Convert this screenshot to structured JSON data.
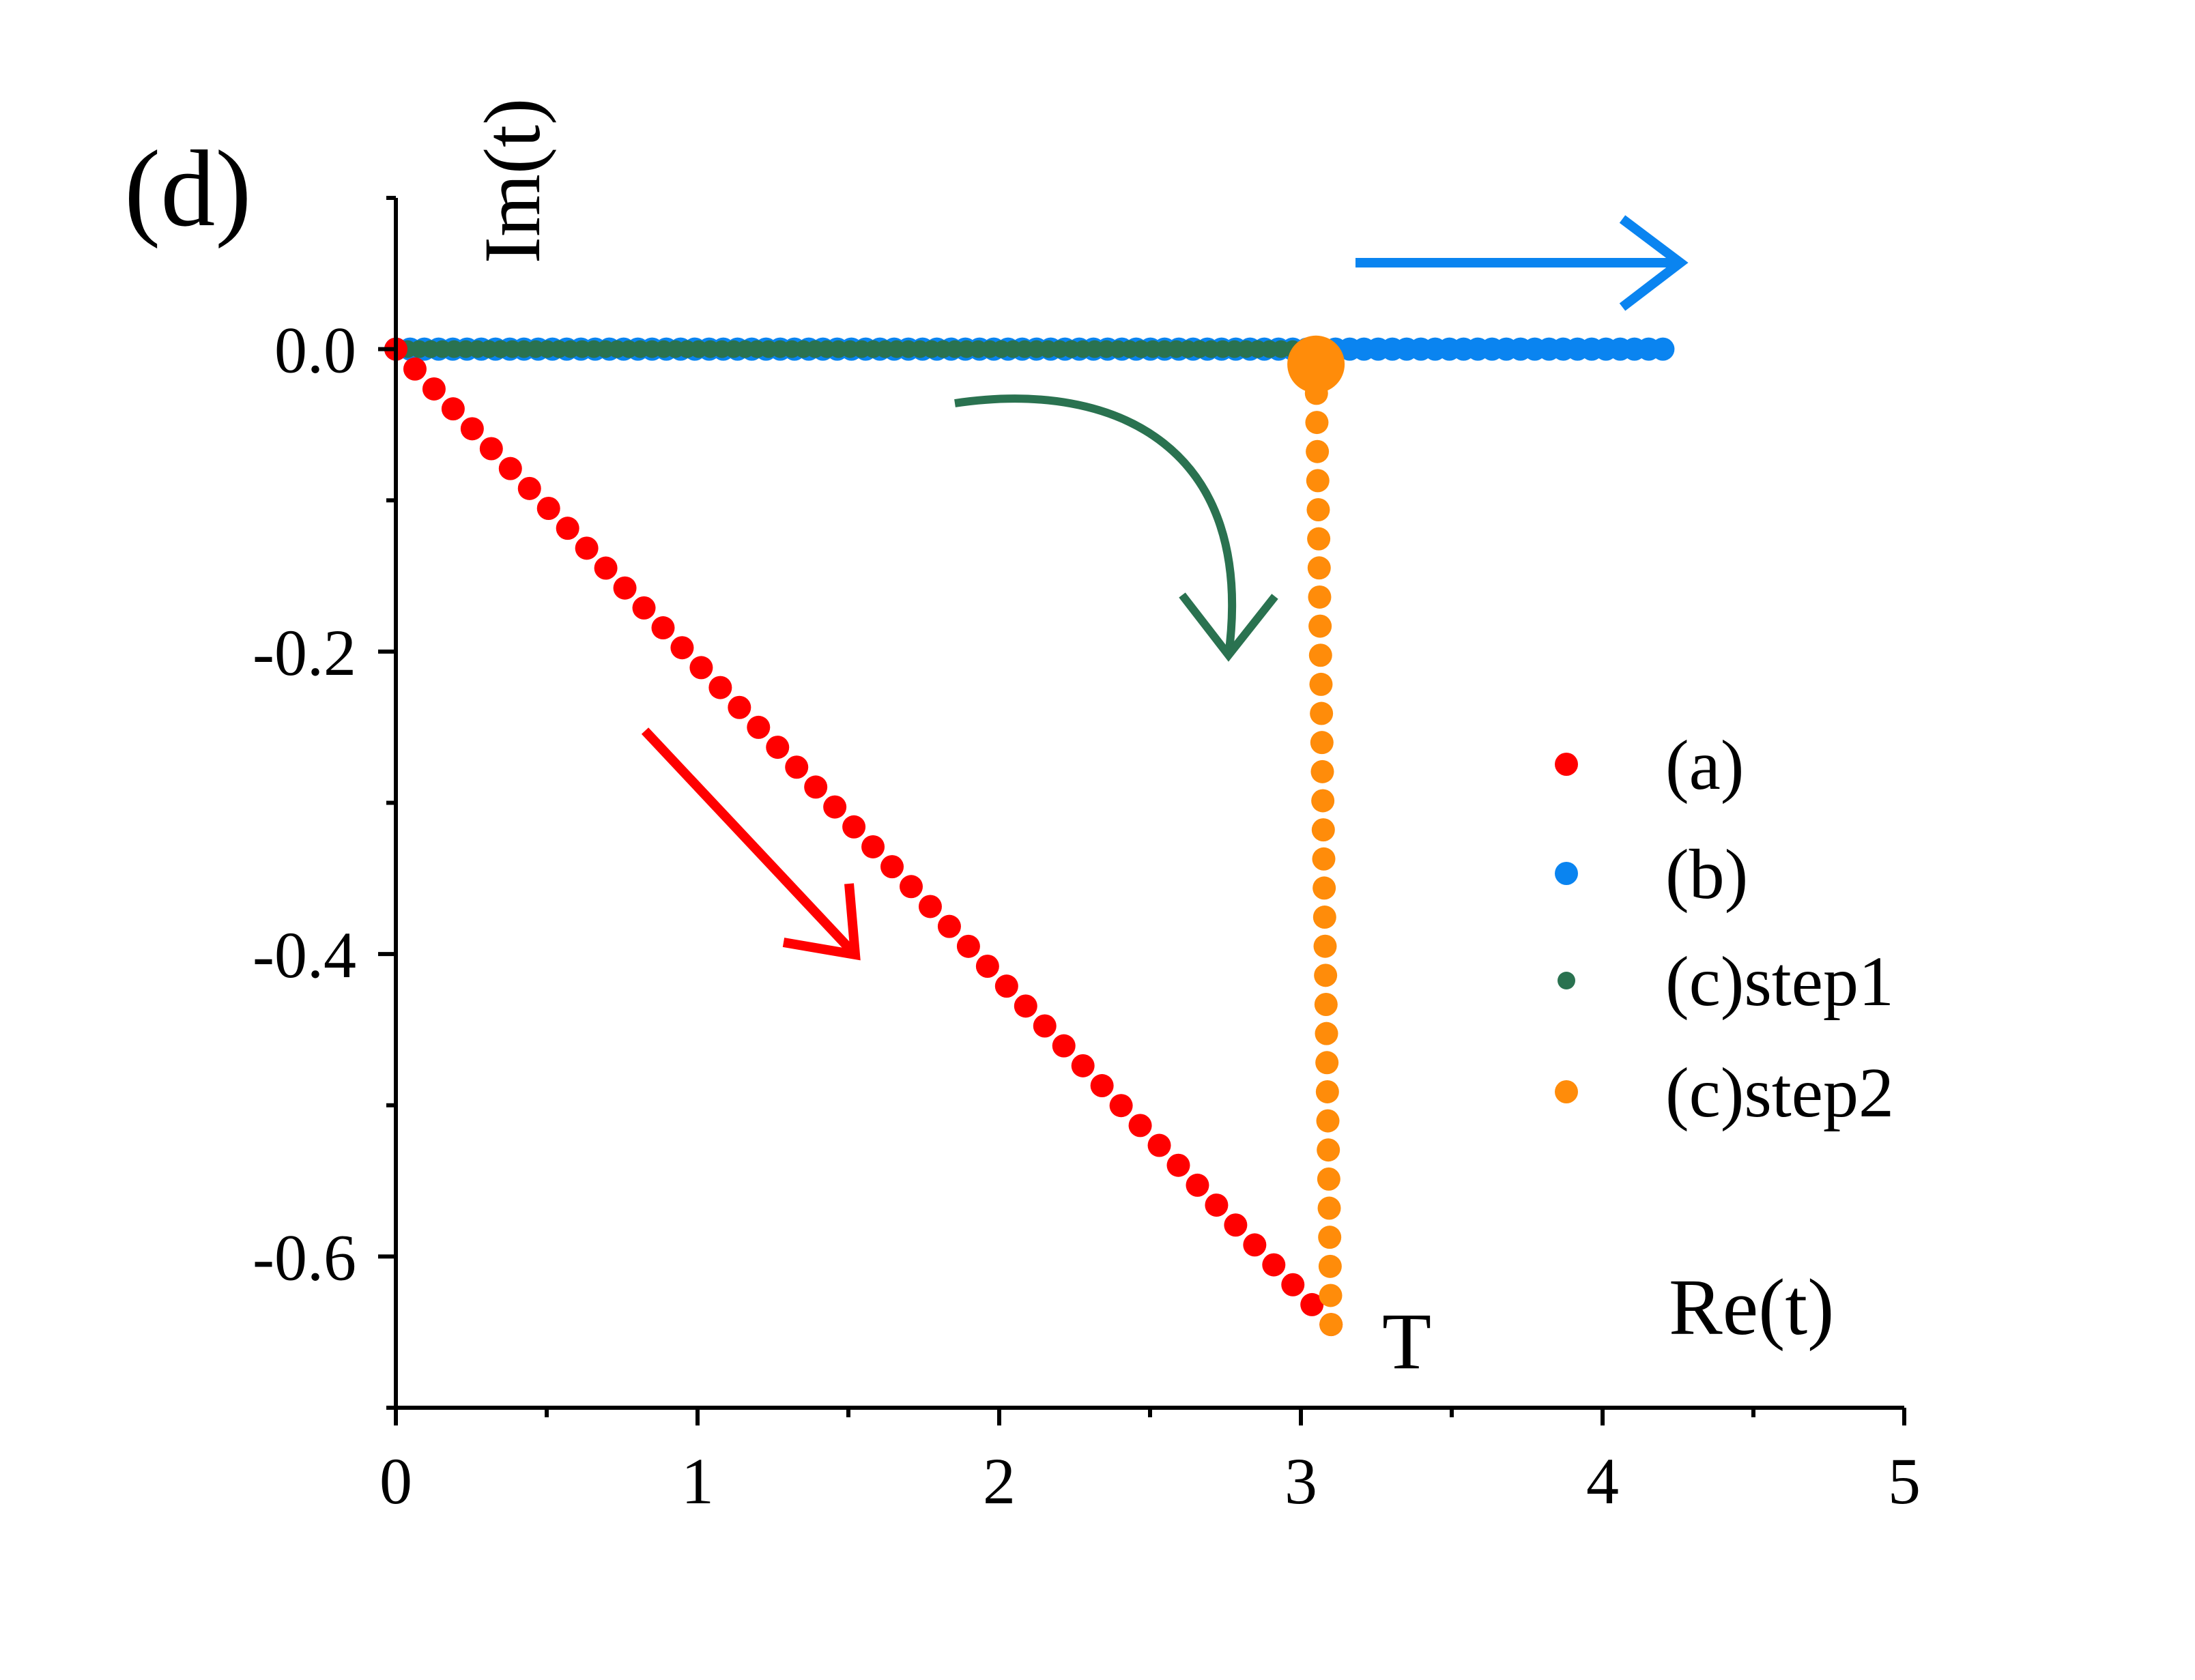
{
  "chart_data": {
    "type": "scatter",
    "panel_label": "(d)",
    "xlabel": "Re(t)",
    "ylabel": "Im(t)",
    "xlim": [
      0,
      5
    ],
    "ylim": [
      -0.7,
      0.1
    ],
    "x_ticks": [
      {
        "value": 0,
        "label": "0"
      },
      {
        "value": 1,
        "label": "1"
      },
      {
        "value": 2,
        "label": "2"
      },
      {
        "value": 3,
        "label": "3"
      },
      {
        "value": 4,
        "label": "4"
      },
      {
        "value": 5,
        "label": "5"
      }
    ],
    "y_ticks": [
      {
        "value": 0.0,
        "label": "0.0"
      },
      {
        "value": -0.2,
        "label": "-0.2"
      },
      {
        "value": -0.4,
        "label": "-0.4"
      },
      {
        "value": -0.6,
        "label": "-0.6"
      }
    ],
    "x_minor_ticks": [
      0.5,
      1.5,
      2.5,
      3.5,
      4.5
    ],
    "y_minor_ticks": [
      0.1,
      -0.1,
      -0.3,
      -0.5,
      -0.7
    ],
    "annotation": "T",
    "legend_position": "right",
    "series": [
      {
        "name": "(a)",
        "color": "#ff0000",
        "path": {
          "from": [
            0.0,
            0.0
          ],
          "to": [
            3.1,
            -0.645
          ],
          "points": 50
        },
        "marker": "circle"
      },
      {
        "name": "(b)",
        "color": "#0a84f0",
        "path": {
          "from": [
            0.0,
            0.0
          ],
          "to": [
            4.2,
            0.0
          ],
          "points": 90
        },
        "marker": "circle"
      },
      {
        "name": "(c)step1",
        "color": "#2a7250",
        "path": {
          "from": [
            0.0,
            0.0
          ],
          "to": [
            3.05,
            0.0
          ],
          "points": 80
        },
        "marker": "circle"
      },
      {
        "name": "(c)step2",
        "color": "#ff8c0a",
        "path": {
          "from": [
            3.05,
            -0.01
          ],
          "to": [
            3.1,
            -0.645
          ],
          "points": 34
        },
        "marker": "circle",
        "highlight_start": true
      }
    ],
    "arrows": [
      {
        "name": "red-arrow",
        "color": "#ff0000",
        "meaning": "direction of (a)"
      },
      {
        "name": "blue-arrow",
        "color": "#0a84f0",
        "meaning": "direction of (b)"
      },
      {
        "name": "green-curved-arrow",
        "color": "#2a7250",
        "meaning": "step1 to step2"
      }
    ]
  }
}
